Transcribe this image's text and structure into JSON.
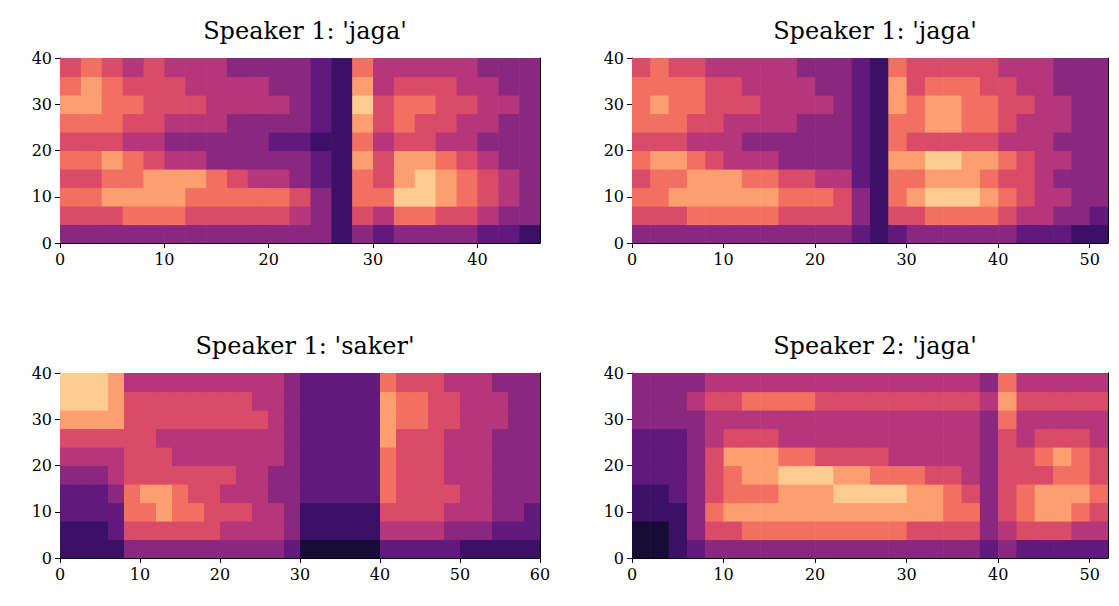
{
  "chart_data": [
    {
      "type": "heatmap",
      "title": "Speaker 1: 'jaga'",
      "xlim": [
        0,
        46
      ],
      "xticks": [
        0,
        10,
        20,
        30,
        40
      ],
      "ylim": [
        0,
        40
      ],
      "yticks": [
        0,
        10,
        20,
        30,
        40
      ],
      "x_bins": [
        0,
        2,
        4,
        6,
        8,
        10,
        12,
        14,
        16,
        18,
        20,
        22,
        24,
        26,
        28,
        30,
        32,
        34,
        36,
        38,
        40,
        42,
        44,
        46
      ],
      "y_bins": [
        0,
        4,
        8,
        12,
        16,
        20,
        24,
        28,
        32,
        36,
        40
      ],
      "value_range": [
        0,
        10
      ],
      "cells": [
        [
          4,
          4,
          4,
          4,
          4,
          4,
          4,
          4,
          4,
          4,
          4,
          4,
          4,
          2,
          4,
          3,
          4,
          4,
          4,
          4,
          3,
          3,
          2
        ],
        [
          6,
          6,
          6,
          7,
          7,
          7,
          6,
          6,
          6,
          6,
          6,
          5,
          4,
          2,
          6,
          5,
          7,
          7,
          6,
          6,
          5,
          4,
          4
        ],
        [
          7,
          7,
          8,
          8,
          8,
          8,
          7,
          7,
          7,
          7,
          7,
          6,
          4,
          2,
          7,
          7,
          9,
          9,
          8,
          7,
          6,
          5,
          4
        ],
        [
          6,
          6,
          7,
          7,
          8,
          8,
          8,
          7,
          6,
          5,
          5,
          4,
          3,
          2,
          7,
          6,
          8,
          9,
          8,
          7,
          6,
          5,
          4
        ],
        [
          7,
          7,
          8,
          7,
          6,
          5,
          5,
          4,
          4,
          4,
          4,
          4,
          3,
          2,
          8,
          6,
          8,
          8,
          7,
          6,
          5,
          4,
          4
        ],
        [
          6,
          6,
          6,
          5,
          5,
          4,
          4,
          4,
          4,
          4,
          3,
          3,
          2,
          2,
          7,
          5,
          6,
          6,
          5,
          5,
          4,
          4,
          4
        ],
        [
          7,
          7,
          7,
          6,
          6,
          5,
          5,
          5,
          4,
          4,
          4,
          4,
          3,
          2,
          8,
          6,
          7,
          6,
          6,
          5,
          5,
          4,
          4
        ],
        [
          8,
          8,
          7,
          7,
          6,
          6,
          6,
          5,
          5,
          5,
          5,
          4,
          3,
          2,
          9,
          6,
          7,
          7,
          6,
          6,
          5,
          5,
          4
        ],
        [
          7,
          8,
          7,
          6,
          6,
          6,
          5,
          5,
          5,
          5,
          4,
          4,
          3,
          2,
          8,
          5,
          6,
          6,
          6,
          5,
          5,
          4,
          4
        ],
        [
          6,
          7,
          6,
          5,
          6,
          5,
          5,
          5,
          4,
          4,
          4,
          4,
          3,
          2,
          7,
          5,
          5,
          5,
          5,
          5,
          4,
          4,
          4
        ]
      ]
    },
    {
      "type": "heatmap",
      "title": "Speaker 1: 'jaga'",
      "xlim": [
        0,
        52
      ],
      "xticks": [
        0,
        10,
        20,
        30,
        40,
        50
      ],
      "ylim": [
        0,
        40
      ],
      "yticks": [
        0,
        10,
        20,
        30,
        40
      ],
      "x_bins": [
        0,
        2,
        4,
        6,
        8,
        10,
        12,
        14,
        16,
        18,
        20,
        22,
        24,
        26,
        28,
        30,
        32,
        34,
        36,
        38,
        40,
        42,
        44,
        46,
        48,
        50,
        52
      ],
      "y_bins": [
        0,
        4,
        8,
        12,
        16,
        20,
        24,
        28,
        32,
        36,
        40
      ],
      "value_range": [
        0,
        10
      ],
      "cells": [
        [
          4,
          4,
          4,
          4,
          4,
          4,
          4,
          4,
          4,
          4,
          4,
          4,
          3,
          2,
          3,
          4,
          4,
          4,
          4,
          4,
          4,
          3,
          3,
          3,
          2,
          2
        ],
        [
          6,
          6,
          6,
          7,
          7,
          7,
          7,
          7,
          6,
          6,
          6,
          6,
          4,
          2,
          6,
          6,
          7,
          7,
          7,
          7,
          6,
          5,
          5,
          4,
          4,
          3
        ],
        [
          7,
          7,
          8,
          8,
          8,
          8,
          8,
          8,
          7,
          7,
          7,
          6,
          4,
          2,
          7,
          8,
          9,
          9,
          9,
          8,
          7,
          6,
          5,
          5,
          4,
          4
        ],
        [
          6,
          7,
          7,
          8,
          8,
          8,
          7,
          7,
          6,
          6,
          5,
          5,
          3,
          2,
          7,
          7,
          8,
          8,
          8,
          7,
          6,
          6,
          5,
          4,
          4,
          4
        ],
        [
          7,
          8,
          8,
          7,
          6,
          5,
          5,
          5,
          4,
          4,
          4,
          4,
          3,
          2,
          8,
          8,
          9,
          9,
          8,
          8,
          7,
          6,
          5,
          5,
          4,
          4
        ],
        [
          6,
          6,
          6,
          5,
          5,
          5,
          4,
          4,
          4,
          4,
          4,
          4,
          3,
          2,
          7,
          6,
          6,
          6,
          6,
          6,
          5,
          5,
          5,
          4,
          4,
          4
        ],
        [
          7,
          7,
          7,
          6,
          6,
          5,
          5,
          5,
          5,
          4,
          4,
          4,
          3,
          2,
          7,
          7,
          8,
          8,
          7,
          7,
          6,
          5,
          5,
          5,
          4,
          4
        ],
        [
          7,
          8,
          7,
          7,
          6,
          6,
          6,
          5,
          5,
          5,
          5,
          4,
          3,
          2,
          8,
          7,
          8,
          8,
          7,
          7,
          6,
          6,
          5,
          5,
          4,
          4
        ],
        [
          7,
          7,
          7,
          7,
          6,
          6,
          5,
          5,
          5,
          5,
          4,
          4,
          3,
          2,
          8,
          6,
          7,
          7,
          7,
          6,
          6,
          5,
          5,
          4,
          4,
          4
        ],
        [
          6,
          7,
          6,
          6,
          5,
          5,
          5,
          5,
          5,
          4,
          4,
          4,
          3,
          2,
          7,
          6,
          6,
          6,
          6,
          6,
          5,
          5,
          5,
          4,
          4,
          4
        ]
      ]
    },
    {
      "type": "heatmap",
      "title": "Speaker 1: 'saker'",
      "xlim": [
        0,
        60
      ],
      "xticks": [
        0,
        10,
        20,
        30,
        40,
        50,
        60
      ],
      "ylim": [
        0,
        40
      ],
      "yticks": [
        0,
        10,
        20,
        30,
        40
      ],
      "x_bins": [
        0,
        2,
        4,
        6,
        8,
        10,
        12,
        14,
        16,
        18,
        20,
        22,
        24,
        26,
        28,
        30,
        32,
        34,
        36,
        38,
        40,
        42,
        44,
        46,
        48,
        50,
        52,
        54,
        56,
        58,
        60
      ],
      "y_bins": [
        0,
        4,
        8,
        12,
        16,
        20,
        24,
        28,
        32,
        36,
        40
      ],
      "value_range": [
        0,
        10
      ],
      "cells": [
        [
          2,
          2,
          2,
          2,
          4,
          4,
          4,
          4,
          4,
          4,
          4,
          4,
          4,
          4,
          3,
          1,
          1,
          1,
          1,
          1,
          3,
          3,
          3,
          3,
          3,
          2,
          2,
          2,
          2,
          2
        ],
        [
          2,
          2,
          2,
          3,
          6,
          6,
          6,
          6,
          6,
          6,
          5,
          5,
          5,
          5,
          4,
          2,
          2,
          2,
          2,
          2,
          5,
          5,
          5,
          5,
          4,
          4,
          4,
          3,
          3,
          3
        ],
        [
          3,
          3,
          3,
          3,
          7,
          7,
          8,
          7,
          7,
          6,
          6,
          6,
          5,
          5,
          4,
          2,
          2,
          2,
          2,
          2,
          6,
          6,
          6,
          6,
          5,
          5,
          5,
          4,
          4,
          3
        ],
        [
          3,
          3,
          3,
          4,
          7,
          8,
          8,
          7,
          6,
          6,
          5,
          5,
          5,
          4,
          4,
          3,
          3,
          3,
          3,
          3,
          7,
          6,
          6,
          6,
          6,
          5,
          5,
          4,
          4,
          4
        ],
        [
          4,
          4,
          4,
          5,
          6,
          6,
          6,
          6,
          6,
          6,
          6,
          5,
          5,
          4,
          4,
          3,
          3,
          3,
          3,
          3,
          7,
          6,
          6,
          6,
          5,
          5,
          5,
          4,
          4,
          4
        ],
        [
          5,
          5,
          5,
          5,
          6,
          6,
          6,
          5,
          5,
          5,
          5,
          5,
          5,
          5,
          4,
          3,
          3,
          3,
          3,
          3,
          7,
          6,
          6,
          6,
          5,
          5,
          5,
          4,
          4,
          4
        ],
        [
          6,
          6,
          6,
          6,
          6,
          6,
          5,
          5,
          5,
          5,
          5,
          5,
          5,
          5,
          4,
          3,
          3,
          3,
          3,
          3,
          8,
          6,
          6,
          6,
          5,
          5,
          5,
          4,
          4,
          4
        ],
        [
          8,
          8,
          8,
          8,
          6,
          6,
          6,
          6,
          6,
          6,
          6,
          6,
          6,
          5,
          4,
          3,
          3,
          3,
          3,
          3,
          8,
          7,
          7,
          6,
          6,
          5,
          5,
          5,
          4,
          4
        ],
        [
          9,
          9,
          9,
          8,
          6,
          6,
          6,
          6,
          6,
          6,
          6,
          6,
          5,
          5,
          4,
          3,
          3,
          3,
          3,
          3,
          8,
          7,
          7,
          6,
          6,
          5,
          5,
          5,
          4,
          4
        ],
        [
          9,
          9,
          9,
          8,
          5,
          5,
          5,
          5,
          5,
          5,
          5,
          5,
          5,
          5,
          4,
          3,
          3,
          3,
          3,
          3,
          7,
          6,
          6,
          6,
          5,
          5,
          5,
          4,
          4,
          4
        ]
      ]
    },
    {
      "type": "heatmap",
      "title": "Speaker 2: 'jaga'",
      "xlim": [
        0,
        52
      ],
      "xticks": [
        0,
        10,
        20,
        30,
        40,
        50
      ],
      "ylim": [
        0,
        40
      ],
      "yticks": [
        0,
        10,
        20,
        30,
        40
      ],
      "x_bins": [
        0,
        2,
        4,
        6,
        8,
        10,
        12,
        14,
        16,
        18,
        20,
        22,
        24,
        26,
        28,
        30,
        32,
        34,
        36,
        38,
        40,
        42,
        44,
        46,
        48,
        50,
        52
      ],
      "y_bins": [
        0,
        4,
        8,
        12,
        16,
        20,
        24,
        28,
        32,
        36,
        40
      ],
      "value_range": [
        0,
        10
      ],
      "cells": [
        [
          1,
          1,
          2,
          3,
          4,
          4,
          4,
          4,
          4,
          4,
          4,
          4,
          4,
          4,
          4,
          4,
          4,
          4,
          4,
          3,
          4,
          3,
          3,
          3,
          3,
          3
        ],
        [
          1,
          1,
          2,
          4,
          6,
          6,
          7,
          7,
          7,
          7,
          7,
          7,
          7,
          7,
          7,
          6,
          6,
          6,
          6,
          4,
          5,
          6,
          6,
          6,
          5,
          5
        ],
        [
          2,
          2,
          2,
          4,
          7,
          8,
          8,
          8,
          8,
          8,
          8,
          8,
          8,
          8,
          8,
          8,
          8,
          7,
          7,
          4,
          6,
          7,
          8,
          8,
          7,
          6
        ],
        [
          2,
          2,
          3,
          4,
          6,
          7,
          7,
          7,
          8,
          8,
          8,
          9,
          9,
          9,
          9,
          8,
          8,
          7,
          6,
          4,
          6,
          7,
          8,
          8,
          8,
          7
        ],
        [
          3,
          3,
          3,
          4,
          6,
          7,
          8,
          8,
          9,
          9,
          9,
          8,
          8,
          7,
          7,
          7,
          6,
          6,
          5,
          4,
          6,
          6,
          6,
          7,
          7,
          6
        ],
        [
          3,
          3,
          3,
          4,
          6,
          8,
          8,
          8,
          7,
          7,
          6,
          6,
          6,
          6,
          5,
          5,
          5,
          5,
          5,
          4,
          6,
          6,
          7,
          8,
          7,
          6
        ],
        [
          3,
          3,
          3,
          4,
          5,
          6,
          6,
          6,
          5,
          5,
          5,
          5,
          5,
          5,
          5,
          5,
          5,
          5,
          5,
          4,
          6,
          5,
          6,
          6,
          6,
          5
        ],
        [
          4,
          4,
          4,
          4,
          5,
          5,
          5,
          5,
          5,
          5,
          5,
          5,
          5,
          5,
          5,
          5,
          5,
          5,
          5,
          4,
          7,
          5,
          5,
          5,
          5,
          5
        ],
        [
          4,
          4,
          4,
          5,
          6,
          6,
          7,
          7,
          7,
          7,
          6,
          6,
          6,
          6,
          6,
          6,
          6,
          6,
          6,
          5,
          8,
          6,
          6,
          6,
          6,
          6
        ],
        [
          4,
          4,
          4,
          4,
          5,
          5,
          5,
          5,
          5,
          5,
          5,
          5,
          5,
          5,
          5,
          5,
          5,
          5,
          5,
          4,
          7,
          5,
          5,
          5,
          5,
          5
        ]
      ]
    }
  ]
}
